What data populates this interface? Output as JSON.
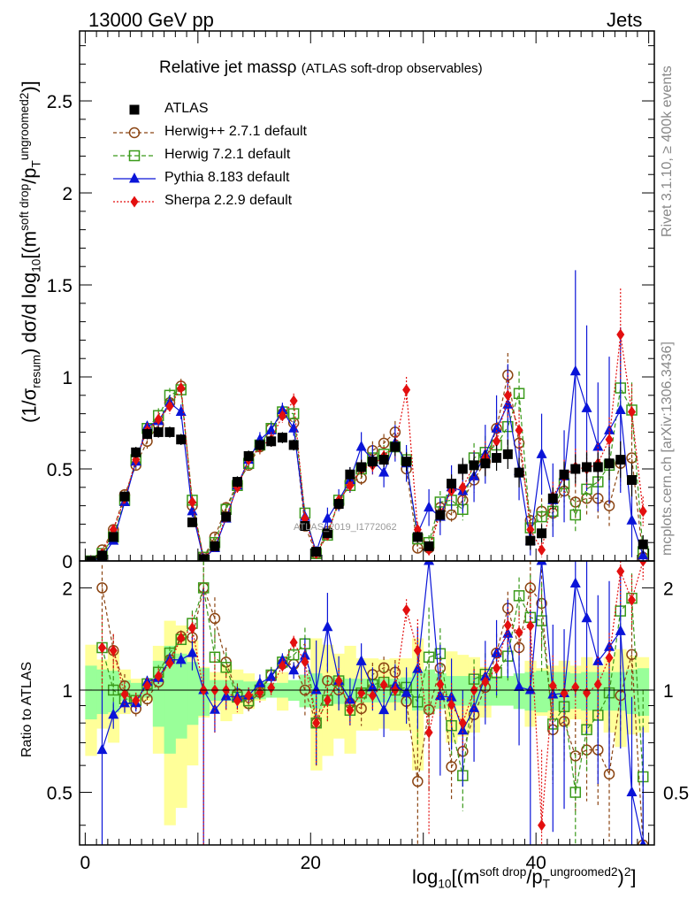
{
  "header": {
    "left": "13000 GeV pp",
    "right": "Jets"
  },
  "side_labels": {
    "top": "Rivet 3.1.10, ≥ 400k events",
    "bottom": "mcplots.cern.ch [arXiv:1306.3436]"
  },
  "title": {
    "main": "Relative jet massρ",
    "sub": "(ATLAS soft-drop observables)"
  },
  "watermark": "ATLAS_2019_I1772062",
  "y_label": {
    "pre": "(1/σ",
    "resum": "resum",
    "mid": ") dσ/d log",
    "ten": "10",
    "b1": "[(m",
    "sd": "soft drop",
    "slash": "/p",
    "T": "T",
    "ug": "ungroomed",
    "two": "2",
    "end": ")]"
  },
  "x_label": {
    "log": "log",
    "ten": "10",
    "b1": "[(m",
    "sd": "soft drop",
    "slash": "/p",
    "T": "T",
    "ug": "ungroomed",
    "two": "2",
    "end": ")",
    "sq": "2",
    "close": "]"
  },
  "ratio_label": "Ratio to ATLAS",
  "legend": [
    {
      "label": "ATLAS",
      "color": "#000000"
    },
    {
      "label": "Herwig++ 2.7.1 default",
      "color": "#8b4513"
    },
    {
      "label": "Herwig 7.2.1 default",
      "color": "#3a9a1a"
    },
    {
      "label": "Pythia 8.183 default",
      "color": "#0a14d8"
    },
    {
      "label": "Sherpa 2.2.9 default",
      "color": "#e30f0f"
    }
  ],
  "chart_data": {
    "type": "scatter",
    "x": [
      0.5,
      1.5,
      2.5,
      3.5,
      4.5,
      5.5,
      6.5,
      7.5,
      8.5,
      9.5,
      10.5,
      11.5,
      12.5,
      13.5,
      14.5,
      15.5,
      16.5,
      17.5,
      18.5,
      19.5,
      20.5,
      21.5,
      22.5,
      23.5,
      24.5,
      25.5,
      26.5,
      27.5,
      28.5,
      29.5,
      30.5,
      31.5,
      32.5,
      33.5,
      34.5,
      35.5,
      36.5,
      37.5,
      38.5,
      39.5,
      40.5,
      41.5,
      42.5,
      43.5,
      44.5,
      45.5,
      46.5,
      47.5,
      48.5,
      49.5
    ],
    "xlim": [
      -0.5,
      50.5
    ],
    "xticks": [
      0,
      20,
      40
    ],
    "main": {
      "ylim": [
        0,
        2.88
      ],
      "yticks": [
        0,
        0.5,
        1,
        1.5,
        2,
        2.5
      ],
      "ytick_labels": [
        "0",
        "0.5",
        "1",
        "1.5",
        "2",
        "2.5"
      ]
    },
    "ratio": {
      "ylim": [
        0.35,
        2.4
      ],
      "yticks": [
        0.5,
        1,
        2
      ],
      "ytick_labels": [
        "0.5",
        "1",
        "2"
      ]
    },
    "series": [
      {
        "name": "ATLAS",
        "values": [
          0.0,
          0.03,
          0.13,
          0.35,
          0.59,
          0.69,
          0.7,
          0.7,
          0.66,
          0.21,
          0.01,
          0.08,
          0.24,
          0.43,
          0.57,
          0.63,
          0.65,
          0.67,
          0.63,
          0.19,
          0.05,
          0.15,
          0.31,
          0.47,
          0.51,
          0.54,
          0.55,
          0.62,
          0.54,
          0.13,
          0.08,
          0.25,
          0.42,
          0.5,
          0.52,
          0.53,
          0.56,
          0.58,
          0.48,
          0.11,
          0.15,
          0.34,
          0.47,
          0.5,
          0.51,
          0.51,
          0.53,
          0.55,
          0.44,
          0.09
        ],
        "errors": [
          0,
          0.01,
          0.01,
          0.02,
          0.03,
          0.03,
          0.03,
          0.03,
          0.03,
          0.02,
          0.01,
          0.01,
          0.02,
          0.03,
          0.03,
          0.03,
          0.03,
          0.03,
          0.03,
          0.02,
          0.01,
          0.02,
          0.03,
          0.04,
          0.04,
          0.04,
          0.04,
          0.05,
          0.05,
          0.03,
          0.02,
          0.04,
          0.05,
          0.06,
          0.06,
          0.07,
          0.07,
          0.08,
          0.08,
          0.05,
          0.05,
          0.06,
          0.07,
          0.08,
          0.08,
          0.08,
          0.09,
          0.1,
          0.09,
          0.05
        ]
      },
      {
        "name": "Herwig++ 2.7.1 default",
        "values": [
          0.0,
          0.06,
          0.17,
          0.36,
          0.52,
          0.65,
          0.74,
          0.86,
          0.95,
          0.3,
          0.02,
          0.13,
          0.29,
          0.42,
          0.52,
          0.62,
          0.72,
          0.8,
          0.75,
          0.19,
          0.04,
          0.16,
          0.31,
          0.43,
          0.45,
          0.6,
          0.64,
          0.7,
          0.5,
          0.07,
          0.07,
          0.29,
          0.25,
          0.33,
          0.44,
          0.54,
          0.72,
          1.01,
          0.64,
          0.22,
          0.27,
          0.26,
          0.38,
          0.32,
          0.34,
          0.34,
          0.3,
          0.53,
          0.56,
          0.02
        ],
        "errors": [
          0,
          0.01,
          0.02,
          0.03,
          0.03,
          0.04,
          0.04,
          0.04,
          0.04,
          0.03,
          0.01,
          0.02,
          0.03,
          0.03,
          0.03,
          0.04,
          0.04,
          0.04,
          0.04,
          0.03,
          0.01,
          0.02,
          0.03,
          0.04,
          0.05,
          0.05,
          0.05,
          0.06,
          0.06,
          0.03,
          0.03,
          0.05,
          0.05,
          0.06,
          0.07,
          0.08,
          0.1,
          0.12,
          0.1,
          0.06,
          0.07,
          0.08,
          0.09,
          0.1,
          0.1,
          0.11,
          0.11,
          0.12,
          0.12,
          0.03
        ]
      },
      {
        "name": "Herwig 7.2.1 default",
        "values": [
          0.0,
          0.04,
          0.13,
          0.33,
          0.55,
          0.72,
          0.79,
          0.9,
          0.93,
          0.33,
          0.02,
          0.1,
          0.28,
          0.41,
          0.53,
          0.63,
          0.72,
          0.81,
          0.8,
          0.26,
          0.04,
          0.14,
          0.33,
          0.41,
          0.5,
          0.56,
          0.58,
          0.62,
          0.55,
          0.12,
          0.1,
          0.32,
          0.33,
          0.28,
          0.56,
          0.59,
          0.63,
          0.73,
          0.91,
          0.18,
          0.24,
          0.27,
          0.42,
          0.25,
          0.39,
          0.43,
          0.52,
          0.94,
          0.82,
          0.05
        ],
        "errors": [
          0,
          0.01,
          0.02,
          0.03,
          0.03,
          0.04,
          0.04,
          0.04,
          0.04,
          0.03,
          0.01,
          0.02,
          0.03,
          0.03,
          0.03,
          0.04,
          0.04,
          0.04,
          0.04,
          0.03,
          0.01,
          0.02,
          0.03,
          0.04,
          0.05,
          0.05,
          0.05,
          0.06,
          0.06,
          0.03,
          0.04,
          0.06,
          0.06,
          0.06,
          0.08,
          0.09,
          0.1,
          0.12,
          0.12,
          0.06,
          0.07,
          0.08,
          0.1,
          0.09,
          0.1,
          0.11,
          0.12,
          0.16,
          0.15,
          0.04
        ]
      },
      {
        "name": "Pythia 8.183 default",
        "values": [
          0.0,
          0.02,
          0.11,
          0.32,
          0.54,
          0.73,
          0.76,
          0.86,
          0.81,
          0.27,
          0.01,
          0.07,
          0.23,
          0.41,
          0.55,
          0.66,
          0.71,
          0.82,
          0.72,
          0.24,
          0.05,
          0.23,
          0.33,
          0.44,
          0.62,
          0.55,
          0.48,
          0.64,
          0.53,
          0.15,
          0.29,
          0.24,
          0.4,
          0.38,
          0.46,
          0.58,
          0.72,
          0.85,
          0.49,
          0.11,
          0.58,
          0.33,
          0.46,
          1.03,
          0.83,
          0.62,
          0.71,
          0.82,
          0.22,
          0.03
        ],
        "errors": [
          0,
          0.01,
          0.01,
          0.02,
          0.03,
          0.03,
          0.03,
          0.04,
          0.04,
          0.03,
          0.01,
          0.01,
          0.02,
          0.03,
          0.03,
          0.04,
          0.04,
          0.04,
          0.04,
          0.03,
          0.02,
          0.06,
          0.06,
          0.07,
          0.08,
          0.08,
          0.08,
          0.1,
          0.1,
          0.05,
          0.1,
          0.1,
          0.12,
          0.12,
          0.14,
          0.16,
          0.18,
          0.22,
          0.16,
          0.08,
          0.22,
          0.2,
          0.25,
          0.55,
          0.45,
          0.35,
          0.4,
          0.45,
          0.2,
          0.04
        ]
      },
      {
        "name": "Sherpa 2.2.9 default",
        "values": [
          0.0,
          0.04,
          0.17,
          0.34,
          0.55,
          0.71,
          0.77,
          0.84,
          0.94,
          0.32,
          0.01,
          0.08,
          0.24,
          0.4,
          0.55,
          0.62,
          0.66,
          0.79,
          0.87,
          0.23,
          0.04,
          0.14,
          0.33,
          0.41,
          0.5,
          0.52,
          0.57,
          0.62,
          0.93,
          0.17,
          0.06,
          0.26,
          0.38,
          0.4,
          0.52,
          0.56,
          0.65,
          0.9,
          0.71,
          0.17,
          0.06,
          0.35,
          0.46,
          0.51,
          0.5,
          0.53,
          0.66,
          1.23,
          0.81,
          0.27
        ],
        "errors": [
          0,
          0.01,
          0.02,
          0.03,
          0.03,
          0.04,
          0.04,
          0.04,
          0.04,
          0.03,
          0.01,
          0.02,
          0.03,
          0.03,
          0.03,
          0.04,
          0.04,
          0.04,
          0.04,
          0.03,
          0.01,
          0.02,
          0.03,
          0.04,
          0.05,
          0.05,
          0.05,
          0.06,
          0.07,
          0.04,
          0.03,
          0.05,
          0.06,
          0.07,
          0.08,
          0.09,
          0.1,
          0.12,
          0.11,
          0.06,
          0.04,
          0.08,
          0.09,
          0.1,
          0.1,
          0.11,
          0.12,
          0.25,
          0.15,
          0.08
        ]
      }
    ],
    "ratio_band_outer": [
      0.64,
      0.77,
      0.7,
      0.85,
      0.92,
      0.93,
      1.35,
      1.6,
      1.55,
      1.4,
      0.83,
      0.87,
      0.81,
      0.85,
      0.88,
      0.93,
      0.95,
      0.87,
      1.0,
      0.95,
      0.58,
      0.64,
      0.72,
      0.65,
      0.76,
      0.76,
      0.77,
      0.76,
      0.76,
      0.58,
      0.88,
      0.88,
      0.7,
      0.73,
      0.75,
      0.83,
      0.9,
      0.9,
      1.0,
      0.78,
      0.84,
      0.82,
      0.78,
      0.82,
      0.75,
      0.82,
      0.75,
      0.68,
      0.74,
      0.75
    ],
    "ratio_band_inner": [
      0.18,
      0.15,
      0.14,
      0.07,
      0.05,
      0.05,
      0.22,
      0.35,
      0.28,
      0.21,
      0.16,
      0.07,
      0.07,
      0.07,
      0.06,
      0.06,
      0.05,
      0.05,
      0.07,
      0.11,
      0.12,
      0.1,
      0.09,
      0.08,
      0.08,
      0.08,
      0.08,
      0.08,
      0.09,
      0.13,
      0.15,
      0.12,
      0.1,
      0.1,
      0.1,
      0.1,
      0.1,
      0.1,
      0.12,
      0.13,
      0.14,
      0.13,
      0.13,
      0.12,
      0.13,
      0.13,
      0.13,
      0.13,
      0.15,
      0.16
    ]
  }
}
